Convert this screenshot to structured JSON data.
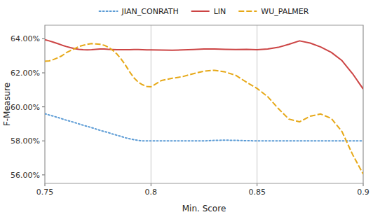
{
  "chart_data": {
    "type": "line",
    "xlabel": "Min. Score",
    "ylabel": "F-Measure",
    "xlim": [
      0.75,
      0.9
    ],
    "ylim": [
      0.555,
      0.648
    ],
    "xticks": [
      0.75,
      0.8,
      0.85,
      0.9
    ],
    "yticks": [
      {
        "value": 0.56,
        "label": "56.00%"
      },
      {
        "value": 0.58,
        "label": "58.00%"
      },
      {
        "value": 0.6,
        "label": "60.00%"
      },
      {
        "value": 0.62,
        "label": "62.00%"
      },
      {
        "value": 0.64,
        "label": "64.00%"
      }
    ],
    "grid": "x",
    "legend": "top",
    "x": [
      0.75,
      0.752,
      0.754,
      0.756,
      0.758,
      0.76,
      0.762,
      0.764,
      0.766,
      0.768,
      0.77,
      0.772,
      0.774,
      0.776,
      0.778,
      0.78,
      0.782,
      0.784,
      0.786,
      0.788,
      0.79,
      0.792,
      0.794,
      0.796,
      0.798,
      0.8,
      0.805,
      0.81,
      0.815,
      0.82,
      0.825,
      0.83,
      0.835,
      0.84,
      0.845,
      0.85,
      0.855,
      0.86,
      0.865,
      0.87,
      0.875,
      0.88,
      0.885,
      0.89,
      0.895,
      0.9
    ],
    "series": [
      {
        "name": "JIAN_CONRATH",
        "color": "#5b9bd5",
        "line_style": "dotted",
        "values": [
          0.596,
          0.5952,
          0.5945,
          0.5938,
          0.593,
          0.5922,
          0.5915,
          0.5908,
          0.59,
          0.5892,
          0.5885,
          0.5878,
          0.587,
          0.5862,
          0.5855,
          0.5848,
          0.584,
          0.5833,
          0.5826,
          0.5818,
          0.5812,
          0.5807,
          0.5803,
          0.58,
          0.58,
          0.58,
          0.58,
          0.58,
          0.58,
          0.58,
          0.58,
          0.5803,
          0.5804,
          0.5803,
          0.5801,
          0.58,
          0.58,
          0.58,
          0.58,
          0.58,
          0.58,
          0.58,
          0.58,
          0.58,
          0.58,
          0.58
        ]
      },
      {
        "name": "LIN",
        "color": "#cc4444",
        "line_style": "solid",
        "values": [
          0.6395,
          0.6388,
          0.638,
          0.6372,
          0.6363,
          0.6355,
          0.6348,
          0.6342,
          0.6338,
          0.6336,
          0.6335,
          0.6336,
          0.6338,
          0.634,
          0.634,
          0.6338,
          0.6337,
          0.6336,
          0.6336,
          0.6336,
          0.6336,
          0.6337,
          0.6337,
          0.6336,
          0.6335,
          0.6335,
          0.6334,
          0.6333,
          0.6335,
          0.6337,
          0.634,
          0.634,
          0.6338,
          0.6337,
          0.6338,
          0.6336,
          0.634,
          0.635,
          0.6368,
          0.6388,
          0.6375,
          0.6352,
          0.632,
          0.6272,
          0.6195,
          0.6105
        ]
      },
      {
        "name": "WU_PALMER",
        "color": "#e6a817",
        "line_style": "dashed",
        "values": [
          0.6268,
          0.627,
          0.6278,
          0.6288,
          0.63,
          0.6318,
          0.633,
          0.6342,
          0.6355,
          0.6362,
          0.6368,
          0.6372,
          0.637,
          0.6368,
          0.6362,
          0.635,
          0.6332,
          0.631,
          0.628,
          0.6245,
          0.6205,
          0.617,
          0.6145,
          0.613,
          0.612,
          0.6118,
          0.6155,
          0.6168,
          0.6178,
          0.6195,
          0.621,
          0.6215,
          0.6205,
          0.6185,
          0.6145,
          0.6108,
          0.606,
          0.599,
          0.5928,
          0.5912,
          0.5945,
          0.5958,
          0.5932,
          0.5855,
          0.572,
          0.5605
        ]
      }
    ]
  }
}
